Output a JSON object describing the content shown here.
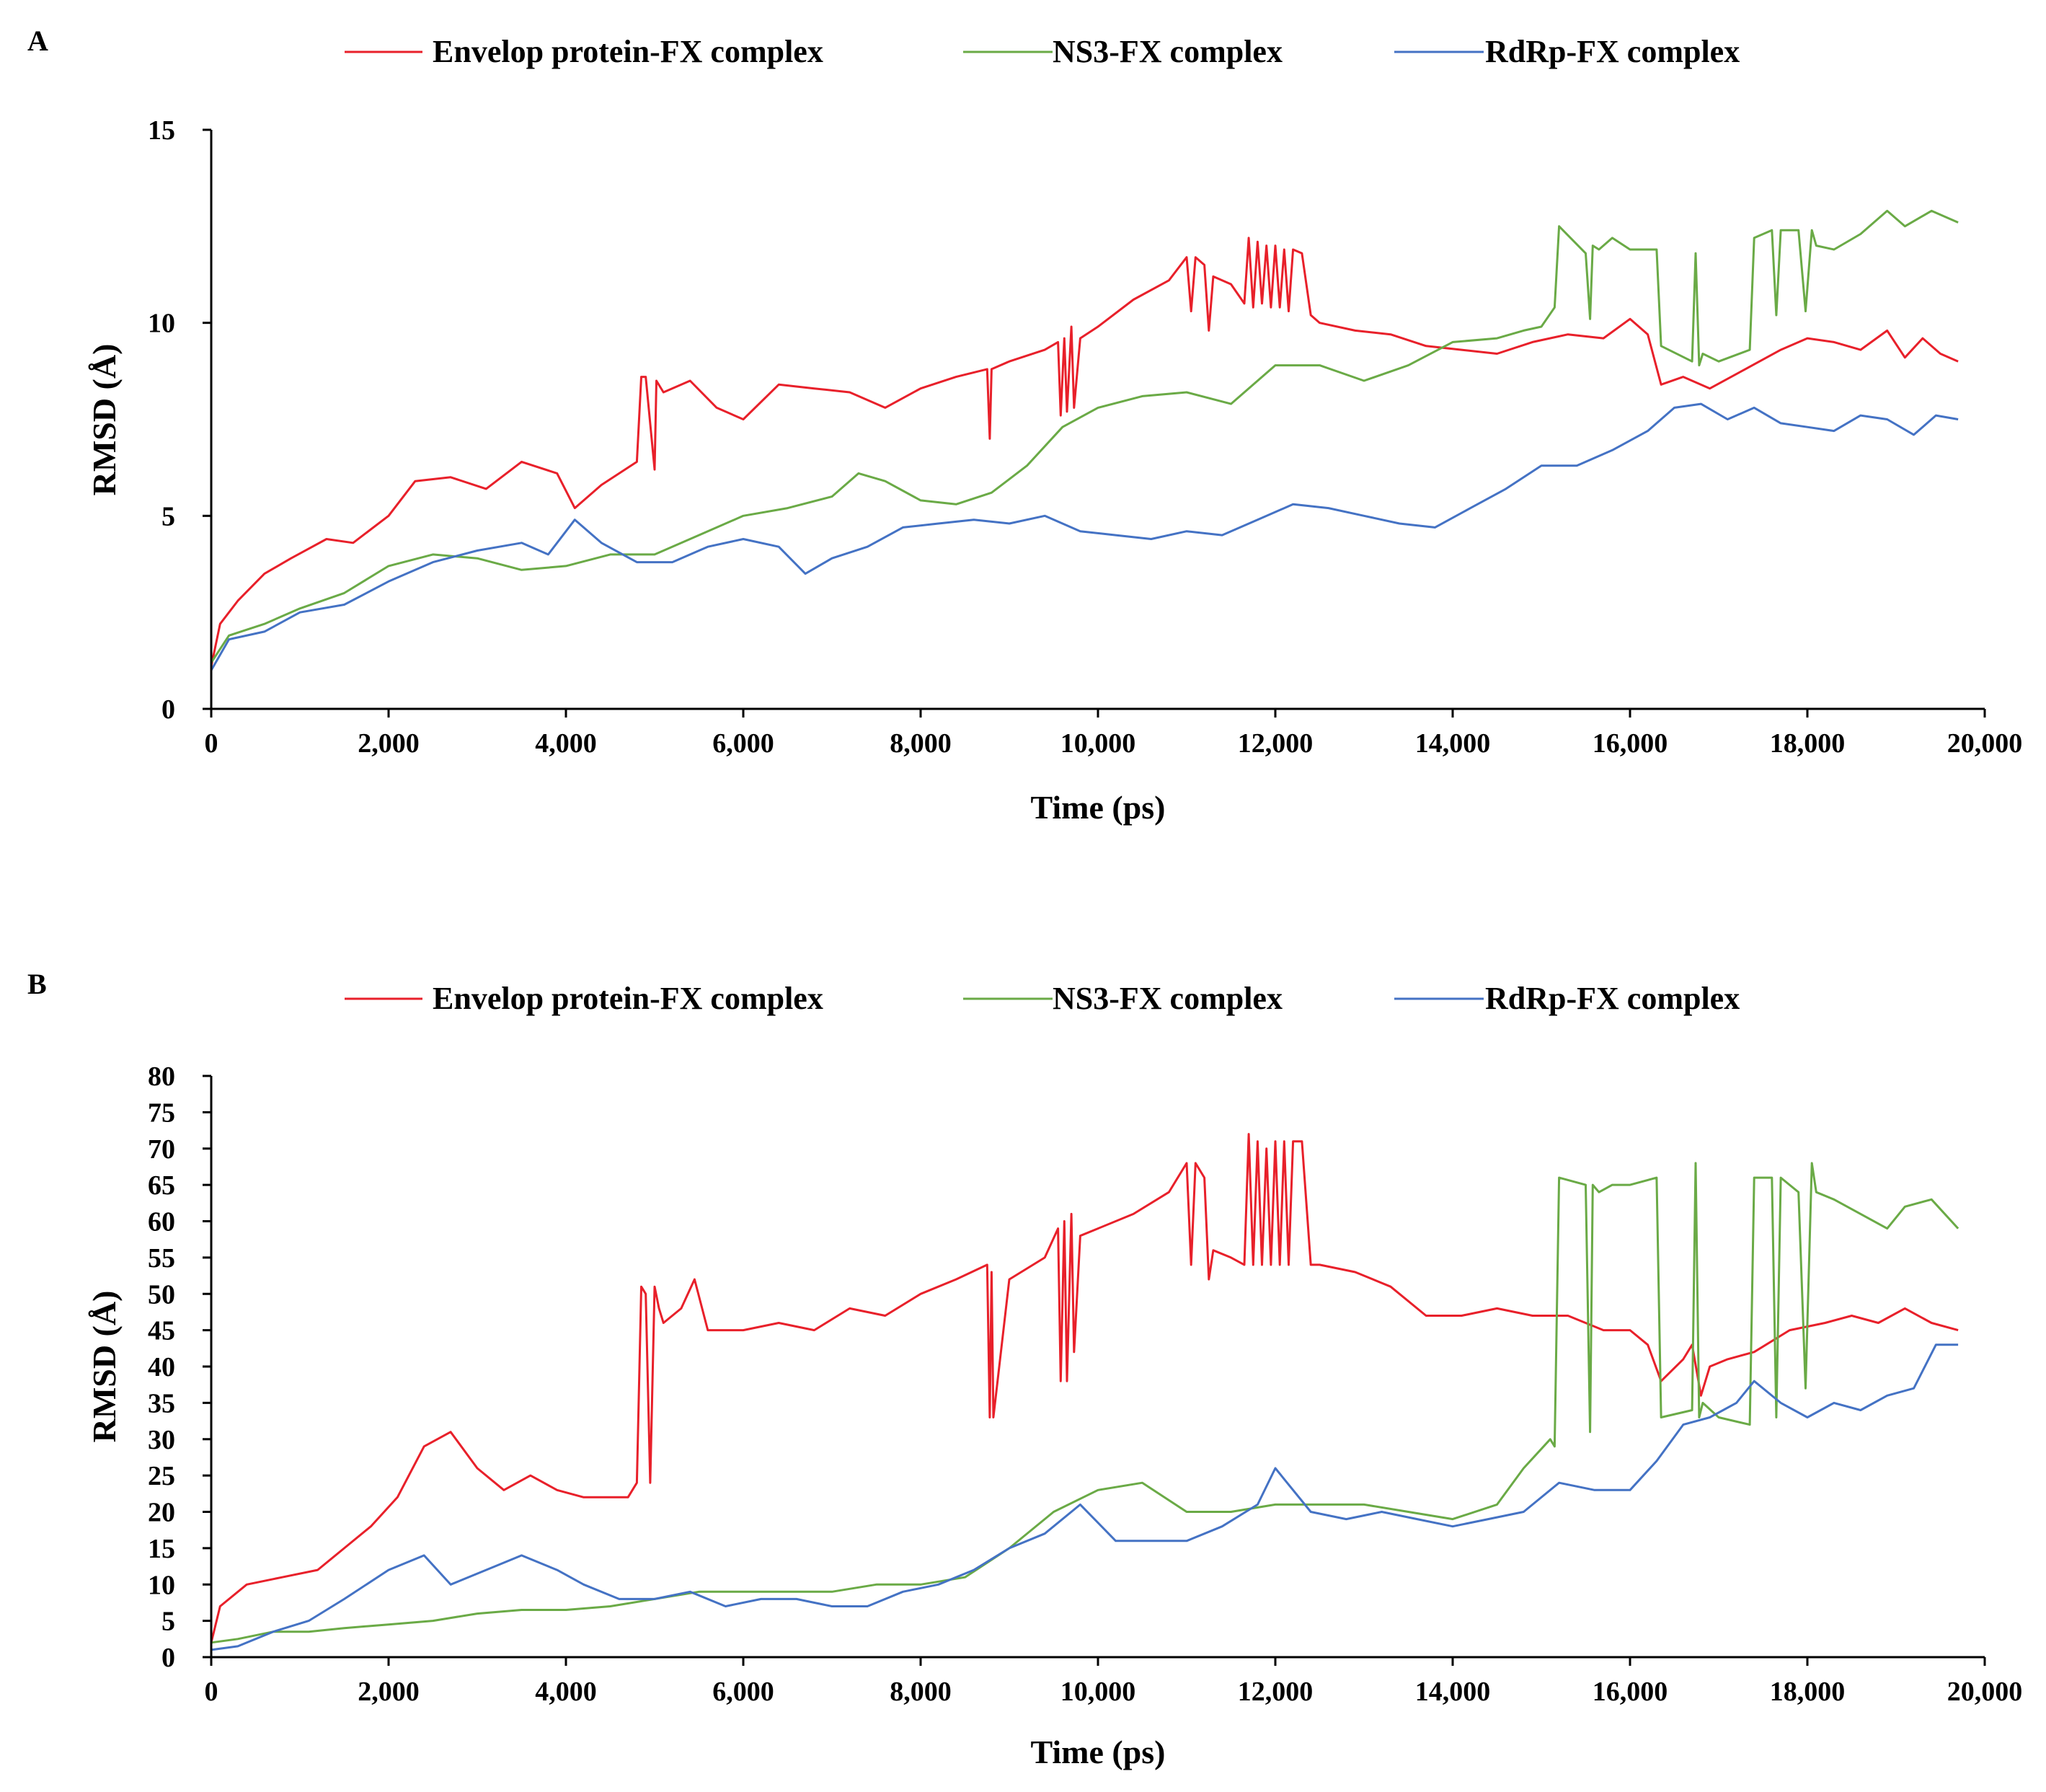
{
  "figure": {
    "panels": [
      "A",
      "B"
    ]
  },
  "chart_data": [
    {
      "panel": "A",
      "type": "line",
      "title": "",
      "xlabel": "Time (ps)",
      "ylabel": "RMSD (Å)",
      "xlim": [
        0,
        20000
      ],
      "ylim": [
        0,
        15
      ],
      "x_ticks": [
        0,
        2000,
        4000,
        6000,
        8000,
        10000,
        12000,
        14000,
        16000,
        18000,
        20000
      ],
      "x_tick_labels": [
        "0",
        "2,000",
        "4,000",
        "6,000",
        "8,000",
        "10,000",
        "12,000",
        "14,000",
        "16,000",
        "18,000",
        "20,000"
      ],
      "y_ticks": [
        0,
        5,
        10,
        15
      ],
      "y_tick_labels": [
        "0",
        "5",
        "10",
        "15"
      ],
      "grid": false,
      "legend_position": "top",
      "series": [
        {
          "name": "Envelop protein-FX complex",
          "color": "#e8202a",
          "x": [
            0,
            100,
            300,
            600,
            900,
            1300,
            1600,
            2000,
            2300,
            2700,
            3100,
            3500,
            3900,
            4100,
            4400,
            4800,
            4850,
            4900,
            5000,
            5020,
            5100,
            5400,
            5700,
            6000,
            6400,
            6800,
            7200,
            7600,
            8000,
            8400,
            8750,
            8780,
            8800,
            9000,
            9400,
            9550,
            9580,
            9620,
            9650,
            9700,
            9730,
            9800,
            10000,
            10400,
            10800,
            11000,
            11050,
            11100,
            11200,
            11250,
            11300,
            11500,
            11650,
            11700,
            11750,
            11800,
            11850,
            11900,
            11950,
            12000,
            12050,
            12100,
            12150,
            12200,
            12300,
            12400,
            12500,
            12900,
            13300,
            13700,
            14100,
            14500,
            14900,
            15300,
            15700,
            16000,
            16200,
            16350,
            16600,
            16900,
            17300,
            17700,
            18000,
            18300,
            18600,
            18900,
            19100,
            19300,
            19500,
            19700
          ],
          "y": [
            1.1,
            2.2,
            2.8,
            3.5,
            3.9,
            4.4,
            4.3,
            5.0,
            5.9,
            6.0,
            5.7,
            6.4,
            6.1,
            5.2,
            5.8,
            6.4,
            8.6,
            8.6,
            6.2,
            8.5,
            8.2,
            8.5,
            7.8,
            7.5,
            8.4,
            8.3,
            8.2,
            7.8,
            8.3,
            8.6,
            8.8,
            7.0,
            8.8,
            9.0,
            9.3,
            9.5,
            7.6,
            9.6,
            7.7,
            9.9,
            7.8,
            9.6,
            9.9,
            10.6,
            11.1,
            11.7,
            10.3,
            11.7,
            11.5,
            9.8,
            11.2,
            11.0,
            10.5,
            12.2,
            10.4,
            12.1,
            10.5,
            12.0,
            10.4,
            12.0,
            10.4,
            11.9,
            10.3,
            11.9,
            11.8,
            10.2,
            10.0,
            9.8,
            9.7,
            9.4,
            9.3,
            9.2,
            9.5,
            9.7,
            9.6,
            10.1,
            9.7,
            8.4,
            8.6,
            8.3,
            8.8,
            9.3,
            9.6,
            9.5,
            9.3,
            9.8,
            9.1,
            9.6,
            9.2,
            9.0
          ]
        },
        {
          "name": "NS3-FX complex",
          "color": "#6aaa46",
          "x": [
            0,
            200,
            600,
            1000,
            1500,
            2000,
            2500,
            3000,
            3500,
            4000,
            4500,
            5000,
            5500,
            6000,
            6500,
            7000,
            7300,
            7600,
            8000,
            8400,
            8800,
            9200,
            9600,
            10000,
            10500,
            11000,
            11500,
            12000,
            12500,
            13000,
            13500,
            14000,
            14500,
            14800,
            15000,
            15150,
            15200,
            15500,
            15550,
            15580,
            15650,
            15800,
            16000,
            16300,
            16350,
            16700,
            16740,
            16780,
            16820,
            17000,
            17350,
            17400,
            17600,
            17650,
            17700,
            17900,
            17980,
            18050,
            18100,
            18300,
            18600,
            18900,
            19100,
            19400,
            19700
          ],
          "y": [
            1.2,
            1.9,
            2.2,
            2.6,
            3.0,
            3.7,
            4.0,
            3.9,
            3.6,
            3.7,
            4.0,
            4.0,
            4.5,
            5.0,
            5.2,
            5.5,
            6.1,
            5.9,
            5.4,
            5.3,
            5.6,
            6.3,
            7.3,
            7.8,
            8.1,
            8.2,
            7.9,
            8.9,
            8.9,
            8.5,
            8.9,
            9.5,
            9.6,
            9.8,
            9.9,
            10.4,
            12.5,
            11.8,
            10.1,
            12.0,
            11.9,
            12.2,
            11.9,
            11.9,
            9.4,
            9.0,
            11.8,
            8.9,
            9.2,
            9.0,
            9.3,
            12.2,
            12.4,
            10.2,
            12.4,
            12.4,
            10.3,
            12.4,
            12.0,
            11.9,
            12.3,
            12.9,
            12.5,
            12.9,
            12.6
          ]
        },
        {
          "name": "RdRp-FX complex",
          "color": "#4472c4",
          "x": [
            0,
            200,
            600,
            1000,
            1500,
            2000,
            2500,
            3000,
            3500,
            3800,
            4100,
            4400,
            4800,
            5200,
            5600,
            6000,
            6400,
            6700,
            7000,
            7400,
            7800,
            8200,
            8600,
            9000,
            9400,
            9800,
            10200,
            10600,
            11000,
            11400,
            11800,
            12200,
            12600,
            13000,
            13400,
            13800,
            14200,
            14600,
            15000,
            15400,
            15800,
            16200,
            16500,
            16800,
            17100,
            17400,
            17700,
            18000,
            18300,
            18600,
            18900,
            19200,
            19450,
            19700
          ],
          "y": [
            1.0,
            1.8,
            2.0,
            2.5,
            2.7,
            3.3,
            3.8,
            4.1,
            4.3,
            4.0,
            4.9,
            4.3,
            3.8,
            3.8,
            4.2,
            4.4,
            4.2,
            3.5,
            3.9,
            4.2,
            4.7,
            4.8,
            4.9,
            4.8,
            5.0,
            4.6,
            4.5,
            4.4,
            4.6,
            4.5,
            4.9,
            5.3,
            5.2,
            5.0,
            4.8,
            4.7,
            5.2,
            5.7,
            6.3,
            6.3,
            6.7,
            7.2,
            7.8,
            7.9,
            7.5,
            7.8,
            7.4,
            7.3,
            7.2,
            7.6,
            7.5,
            7.1,
            7.6,
            7.5
          ]
        }
      ]
    },
    {
      "panel": "B",
      "type": "line",
      "title": "",
      "xlabel": "Time (ps)",
      "ylabel": "RMSD (Å)",
      "xlim": [
        0,
        20000
      ],
      "ylim": [
        0,
        80
      ],
      "x_ticks": [
        0,
        2000,
        4000,
        6000,
        8000,
        10000,
        12000,
        14000,
        16000,
        18000,
        20000
      ],
      "x_tick_labels": [
        "0",
        "2,000",
        "4,000",
        "6,000",
        "8,000",
        "10,000",
        "12,000",
        "14,000",
        "16,000",
        "18,000",
        "20,000"
      ],
      "y_ticks": [
        0,
        5,
        10,
        15,
        20,
        25,
        30,
        35,
        40,
        45,
        50,
        55,
        60,
        65,
        70,
        75,
        80
      ],
      "y_tick_labels": [
        "0",
        "5",
        "10",
        "15",
        "20",
        "25",
        "30",
        "35",
        "40",
        "45",
        "50",
        "55",
        "60",
        "65",
        "70",
        "75",
        "80"
      ],
      "grid": false,
      "legend_position": "top",
      "series": [
        {
          "name": "Envelop protein-FX complex",
          "color": "#e8202a",
          "x": [
            0,
            100,
            400,
            800,
            1200,
            1500,
            1800,
            2100,
            2400,
            2700,
            3000,
            3300,
            3600,
            3900,
            4200,
            4500,
            4700,
            4800,
            4850,
            4900,
            4950,
            5000,
            5050,
            5100,
            5300,
            5450,
            5600,
            6000,
            6400,
            6800,
            7200,
            7600,
            8000,
            8400,
            8750,
            8780,
            8800,
            8820,
            9000,
            9400,
            9550,
            9580,
            9620,
            9650,
            9700,
            9730,
            9800,
            10000,
            10400,
            10800,
            11000,
            11050,
            11100,
            11200,
            11250,
            11300,
            11500,
            11650,
            11700,
            11750,
            11800,
            11850,
            11900,
            11950,
            12000,
            12050,
            12100,
            12150,
            12200,
            12300,
            12400,
            12500,
            12900,
            13300,
            13700,
            14100,
            14500,
            14900,
            15300,
            15700,
            16000,
            16200,
            16350,
            16600,
            16700,
            16800,
            16900,
            17100,
            17400,
            17800,
            18200,
            18500,
            18800,
            19100,
            19400,
            19700
          ],
          "y": [
            2.0,
            7.0,
            10.0,
            11.0,
            12.0,
            15.0,
            18.0,
            22.0,
            29.0,
            31.0,
            26.0,
            23.0,
            25.0,
            23.0,
            22.0,
            22.0,
            22.0,
            24.0,
            51.0,
            50.0,
            24.0,
            51.0,
            48.0,
            46.0,
            48.0,
            52.0,
            45.0,
            45.0,
            46.0,
            45.0,
            48.0,
            47.0,
            50.0,
            52.0,
            54.0,
            33.0,
            53.0,
            33.0,
            52.0,
            55.0,
            59.0,
            38.0,
            60.0,
            38.0,
            61.0,
            42.0,
            58.0,
            59.0,
            61.0,
            64.0,
            68.0,
            54.0,
            68.0,
            66.0,
            52.0,
            56.0,
            55.0,
            54.0,
            72.0,
            54.0,
            71.0,
            54.0,
            70.0,
            54.0,
            71.0,
            54.0,
            71.0,
            54.0,
            71.0,
            71.0,
            54.0,
            54.0,
            53.0,
            51.0,
            47.0,
            47.0,
            48.0,
            47.0,
            47.0,
            45.0,
            45.0,
            43.0,
            38.0,
            41.0,
            43.0,
            36.0,
            40.0,
            41.0,
            42.0,
            45.0,
            46.0,
            47.0,
            46.0,
            48.0,
            46.0,
            45.0
          ]
        },
        {
          "name": "NS3-FX complex",
          "color": "#6aaa46",
          "x": [
            0,
            300,
            700,
            1100,
            1500,
            2000,
            2500,
            3000,
            3500,
            4000,
            4500,
            5000,
            5500,
            6000,
            6500,
            7000,
            7500,
            8000,
            8500,
            9000,
            9500,
            10000,
            10500,
            11000,
            11500,
            12000,
            12500,
            13000,
            13500,
            14000,
            14500,
            14800,
            15100,
            15150,
            15200,
            15500,
            15550,
            15580,
            15650,
            15800,
            16000,
            16300,
            16350,
            16700,
            16740,
            16780,
            16820,
            17000,
            17350,
            17400,
            17600,
            17650,
            17700,
            17900,
            17980,
            18050,
            18100,
            18300,
            18600,
            18900,
            19100,
            19400,
            19700
          ],
          "y": [
            2.0,
            2.5,
            3.5,
            3.5,
            4.0,
            4.5,
            5.0,
            6.0,
            6.5,
            6.5,
            7.0,
            8.0,
            9.0,
            9.0,
            9.0,
            9.0,
            10.0,
            10.0,
            11.0,
            15.0,
            20.0,
            23.0,
            24.0,
            20.0,
            20.0,
            21.0,
            21.0,
            21.0,
            20.0,
            19.0,
            21.0,
            26.0,
            30.0,
            29.0,
            66.0,
            65.0,
            31.0,
            65.0,
            64.0,
            65.0,
            65.0,
            66.0,
            33.0,
            34.0,
            68.0,
            33.0,
            35.0,
            33.0,
            32.0,
            66.0,
            66.0,
            33.0,
            66.0,
            64.0,
            37.0,
            68.0,
            64.0,
            63.0,
            61.0,
            59.0,
            62.0,
            63.0,
            59.0
          ]
        },
        {
          "name": "RdRp-FX complex",
          "color": "#4472c4",
          "x": [
            0,
            300,
            700,
            1100,
            1500,
            2000,
            2400,
            2700,
            3100,
            3500,
            3900,
            4200,
            4600,
            5000,
            5400,
            5800,
            6200,
            6600,
            7000,
            7400,
            7800,
            8200,
            8600,
            9000,
            9400,
            9800,
            10200,
            10600,
            11000,
            11400,
            11800,
            12000,
            12400,
            12800,
            13200,
            13600,
            14000,
            14400,
            14800,
            15200,
            15600,
            16000,
            16300,
            16600,
            16900,
            17200,
            17400,
            17700,
            18000,
            18300,
            18600,
            18900,
            19200,
            19450,
            19700
          ],
          "y": [
            1.0,
            1.5,
            3.5,
            5.0,
            8.0,
            12.0,
            14.0,
            10.0,
            12.0,
            14.0,
            12.0,
            10.0,
            8.0,
            8.0,
            9.0,
            7.0,
            8.0,
            8.0,
            7.0,
            7.0,
            9.0,
            10.0,
            12.0,
            15.0,
            17.0,
            21.0,
            16.0,
            16.0,
            16.0,
            18.0,
            21.0,
            26.0,
            20.0,
            19.0,
            20.0,
            19.0,
            18.0,
            19.0,
            20.0,
            24.0,
            23.0,
            23.0,
            27.0,
            32.0,
            33.0,
            35.0,
            38.0,
            35.0,
            33.0,
            35.0,
            34.0,
            36.0,
            37.0,
            43.0,
            43.0
          ]
        }
      ]
    }
  ]
}
